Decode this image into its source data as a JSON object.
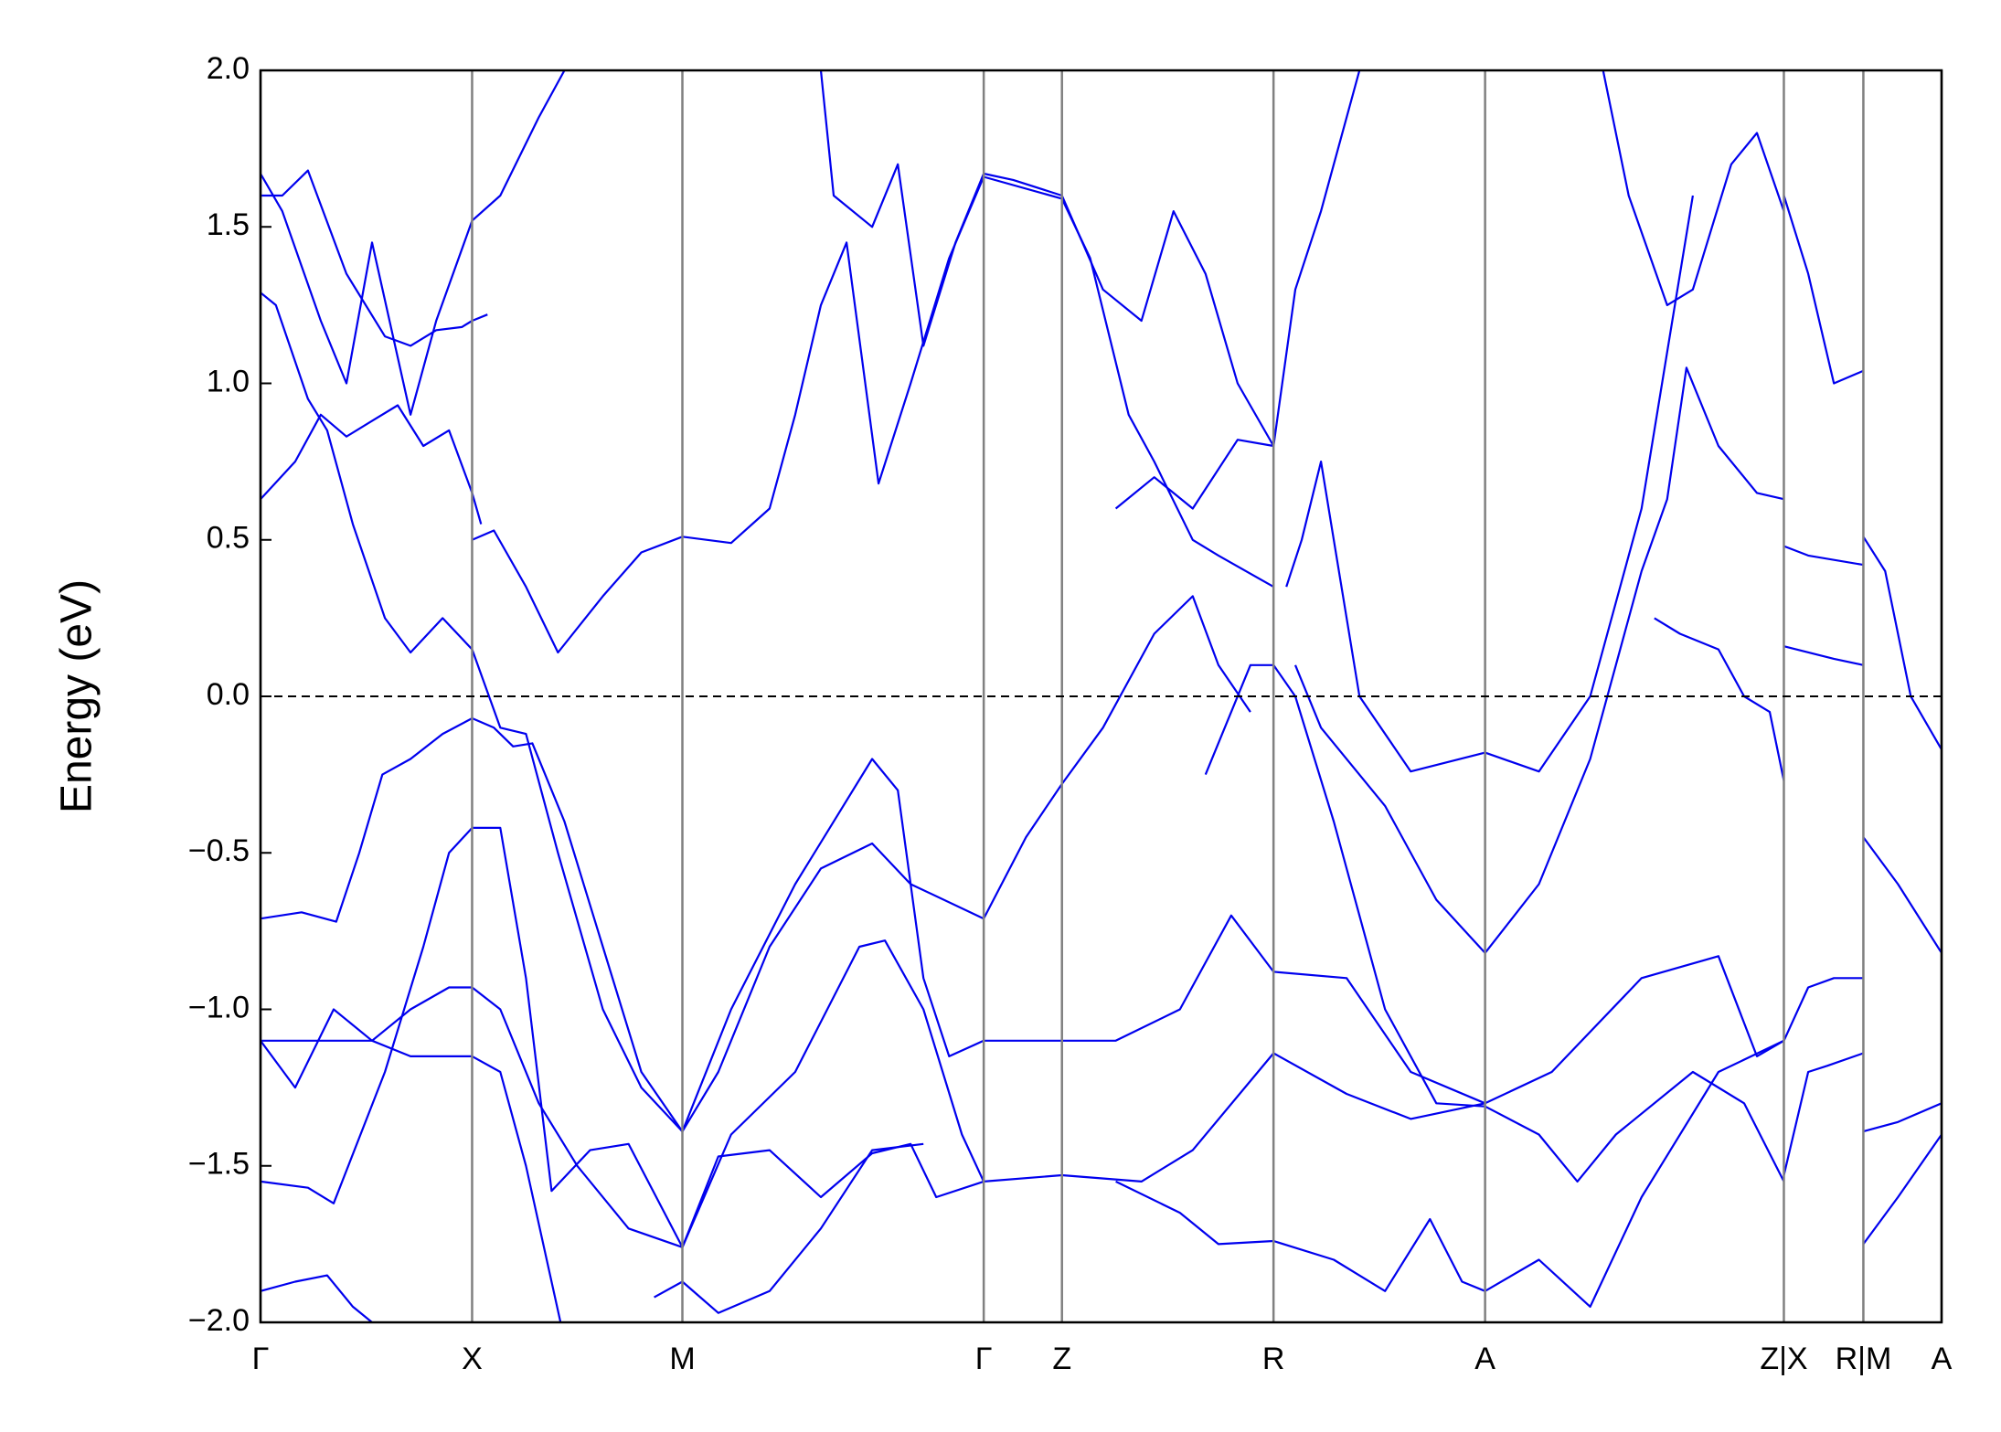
{
  "chart_data": {
    "type": "line",
    "ylabel": "Energy (eV)",
    "xlim": [
      0,
      1311
    ],
    "ylim": [
      -2.0,
      2.0
    ],
    "xticks": [
      {
        "value": 0,
        "label": "Γ"
      },
      {
        "value": 165,
        "label": "X"
      },
      {
        "value": 329,
        "label": "M"
      },
      {
        "value": 564,
        "label": "Γ"
      },
      {
        "value": 625,
        "label": "Z"
      },
      {
        "value": 790,
        "label": "R"
      },
      {
        "value": 955,
        "label": "A"
      },
      {
        "value": 1188,
        "label": "Z|X"
      },
      {
        "value": 1250,
        "label": "R|M"
      },
      {
        "value": 1311,
        "label": "A"
      }
    ],
    "yticks": [
      {
        "value": -2.0,
        "label": "−2.0"
      },
      {
        "value": -1.5,
        "label": "−1.5"
      },
      {
        "value": -1.0,
        "label": "−1.0"
      },
      {
        "value": -0.5,
        "label": "−0.5"
      },
      {
        "value": 0.0,
        "label": "0.0"
      },
      {
        "value": 0.5,
        "label": "0.5"
      },
      {
        "value": 1.0,
        "label": "1.0"
      },
      {
        "value": 1.5,
        "label": "1.5"
      },
      {
        "value": 2.0,
        "label": "2.0"
      }
    ],
    "hlines": [
      0
    ],
    "grid_color": "#808080",
    "series": [
      {
        "color": "#0000ee",
        "x": [
          165,
          182,
          207,
          232,
          267,
          297,
          329,
          367,
          397,
          417,
          437,
          457,
          482,
          507,
          537,
          564,
          625,
          647,
          677,
          697,
          727,
          747,
          790
        ],
        "values": [
          0.5,
          0.53,
          0.35,
          0.14,
          0.32,
          0.46,
          0.51,
          0.49,
          0.6,
          0.9,
          1.25,
          1.45,
          0.68,
          1.0,
          1.4,
          1.66,
          1.59,
          1.4,
          0.9,
          0.75,
          0.5,
          0.45,
          0.35
        ]
      },
      {
        "color": "#0000ee",
        "x": [
          0,
          27,
          47,
          67,
          87,
          107,
          127,
          147,
          165,
          172
        ],
        "values": [
          0.63,
          0.75,
          0.9,
          0.83,
          0.88,
          0.93,
          0.8,
          0.85,
          0.65,
          0.55
        ]
      },
      {
        "color": "#0000ee",
        "x": [
          0,
          17,
          47,
          67,
          87,
          117,
          137,
          165,
          187,
          217,
          237
        ],
        "values": [
          1.67,
          1.55,
          1.2,
          1.0,
          1.45,
          0.9,
          1.2,
          1.52,
          1.6,
          1.85,
          2.0
        ]
      },
      {
        "color": "#0000ee",
        "x": [
          0,
          12,
          37,
          52,
          72,
          97,
          117,
          142,
          165,
          187,
          207,
          232,
          267,
          297,
          329,
          357,
          397,
          437,
          477,
          507,
          564,
          597,
          625,
          657,
          697,
          727,
          747,
          772
        ],
        "values": [
          1.29,
          1.25,
          0.95,
          0.85,
          0.55,
          0.25,
          0.14,
          0.25,
          0.15,
          -0.1,
          -0.12,
          -0.5,
          -1.0,
          -1.25,
          -1.39,
          -1.2,
          -0.8,
          -0.55,
          -0.47,
          -0.6,
          -0.71,
          -0.45,
          -0.28,
          -0.1,
          0.2,
          0.32,
          0.1,
          -0.05
        ]
      },
      {
        "color": "#0000ee",
        "x": [
          0,
          32,
          59,
          77,
          95,
          117,
          142,
          165,
          182,
          197,
          212,
          237,
          267,
          297,
          329,
          367,
          417,
          477,
          497,
          517,
          537,
          564,
          625,
          667,
          717,
          757,
          790,
          847,
          897,
          955,
          1007,
          1077,
          1137,
          1167,
          1188
        ],
        "values": [
          -0.71,
          -0.69,
          -0.72,
          -0.5,
          -0.25,
          -0.2,
          -0.12,
          -0.07,
          -0.1,
          -0.16,
          -0.15,
          -0.4,
          -0.8,
          -1.2,
          -1.39,
          -1.0,
          -0.6,
          -0.2,
          -0.3,
          -0.9,
          -1.15,
          -1.1,
          -1.1,
          -1.1,
          -1.0,
          -0.7,
          -0.88,
          -0.9,
          -1.2,
          -1.3,
          -1.2,
          -0.9,
          -0.83,
          -1.15,
          -1.1
        ]
      },
      {
        "color": "#0000ee",
        "x": [
          0,
          47,
          87,
          117,
          147,
          165,
          187,
          217,
          247,
          287,
          329,
          367,
          417,
          467,
          487,
          517,
          547,
          564,
          625,
          687,
          727,
          790,
          847,
          897,
          955
        ],
        "values": [
          -1.1,
          -1.1,
          -1.1,
          -1.0,
          -0.93,
          -0.93,
          -1.0,
          -1.3,
          -1.5,
          -1.7,
          -1.76,
          -1.4,
          -1.2,
          -0.8,
          -0.78,
          -1.0,
          -1.4,
          -1.55,
          -1.53,
          -1.55,
          -1.45,
          -1.14,
          -1.27,
          -1.35,
          -1.3
        ]
      },
      {
        "color": "#0000ee",
        "x": [
          0,
          37,
          57,
          97,
          127,
          147,
          165,
          187,
          207,
          227,
          257,
          287,
          329,
          357,
          397,
          437,
          477,
          507,
          527,
          564
        ],
        "values": [
          -1.55,
          -1.57,
          -1.62,
          -1.2,
          -0.8,
          -0.5,
          -0.42,
          -0.42,
          -0.9,
          -1.58,
          -1.45,
          -1.43,
          -1.76,
          -1.47,
          -1.45,
          -1.6,
          -1.46,
          -1.43,
          -1.6,
          -1.55
        ]
      },
      {
        "color": "#0000ee",
        "x": [
          0,
          27,
          52,
          72,
          87
        ],
        "values": [
          -1.9,
          -1.87,
          -1.85,
          -1.95,
          -2.0
        ]
      },
      {
        "color": "#0000ee",
        "x": [
          0,
          27,
          57,
          87,
          117,
          165,
          187,
          207,
          234
        ],
        "values": [
          -1.1,
          -1.25,
          -1.0,
          -1.1,
          -1.15,
          -1.15,
          -1.2,
          -1.5,
          -2.0
        ]
      },
      {
        "color": "#0000ee",
        "x": [
          807,
          827,
          877,
          917,
          955,
          997,
          1037,
          1057,
          1077,
          1097,
          1112,
          1137,
          1167,
          1188
        ],
        "values": [
          0.1,
          -0.1,
          -0.35,
          -0.65,
          -0.82,
          -0.6,
          -0.2,
          0.1,
          0.4,
          0.63,
          1.05,
          0.8,
          0.65,
          0.63
        ]
      },
      {
        "color": "#0000ee",
        "x": [
          800,
          812,
          827,
          837,
          857,
          897,
          955,
          997,
          1037,
          1077,
          1097,
          1117
        ],
        "values": [
          0.35,
          0.5,
          0.75,
          0.5,
          0.0,
          -0.24,
          -0.18,
          -0.24,
          0.0,
          0.6,
          1.1,
          1.6
        ]
      },
      {
        "color": "#0000ee",
        "x": [
          1188,
          1207,
          1227,
          1250
        ],
        "values": [
          1.6,
          1.35,
          1.0,
          1.04
        ]
      },
      {
        "color": "#0000ee",
        "x": [
          1188,
          1207,
          1250
        ],
        "values": [
          0.48,
          0.45,
          0.42
        ]
      },
      {
        "color": "#0000ee",
        "x": [
          1188,
          1227,
          1250
        ],
        "values": [
          0.16,
          0.12,
          0.1
        ]
      },
      {
        "color": "#0000ee",
        "x": [
          1188,
          1207,
          1227,
          1250
        ],
        "values": [
          -1.1,
          -0.93,
          -0.9,
          -0.9
        ]
      },
      {
        "color": "#0000ee",
        "x": [
          1188,
          1207,
          1222,
          1250
        ],
        "values": [
          -1.53,
          -1.2,
          -1.18,
          -1.14
        ]
      },
      {
        "color": "#0000ee",
        "x": [
          1250,
          1267,
          1287,
          1311
        ],
        "values": [
          0.51,
          0.4,
          0.0,
          -0.17
        ]
      },
      {
        "color": "#0000ee",
        "x": [
          1250,
          1277,
          1311
        ],
        "values": [
          -0.45,
          -0.6,
          -0.82
        ]
      },
      {
        "color": "#0000ee",
        "x": [
          1250,
          1277,
          1311
        ],
        "values": [
          -1.39,
          -1.36,
          -1.3
        ]
      },
      {
        "color": "#0000ee",
        "x": [
          1250,
          1277,
          1311
        ],
        "values": [
          -1.75,
          -1.6,
          -1.4
        ]
      },
      {
        "color": "#0000ee",
        "x": [
          307,
          329,
          357,
          397,
          437,
          477,
          517
        ],
        "values": [
          -1.92,
          -1.87,
          -1.97,
          -1.9,
          -1.7,
          -1.45,
          -1.43
        ]
      },
      {
        "color": "#0000ee",
        "x": [
          667,
          717,
          747,
          790,
          837,
          877,
          912,
          937,
          955,
          997,
          1037,
          1077,
          1137,
          1188
        ],
        "values": [
          -1.55,
          -1.65,
          -1.75,
          -1.74,
          -1.8,
          -1.9,
          -1.67,
          -1.87,
          -1.9,
          -1.8,
          -1.95,
          -1.6,
          -1.2,
          -1.1
        ]
      },
      {
        "color": "#0000ee",
        "x": [
          437,
          447,
          477,
          497,
          517,
          542,
          564,
          587,
          625,
          657,
          687,
          712,
          737,
          762,
          790
        ],
        "values": [
          2.0,
          1.6,
          1.5,
          1.7,
          1.12,
          1.45,
          1.67,
          1.65,
          1.6,
          1.3,
          1.2,
          1.55,
          1.35,
          1.0,
          0.8
        ]
      },
      {
        "color": "#0000ee",
        "x": [
          667,
          697,
          727,
          762,
          790,
          807,
          827,
          857
        ],
        "values": [
          0.6,
          0.7,
          0.6,
          0.82,
          0.8,
          1.3,
          1.55,
          2.0
        ]
      },
      {
        "color": "#0000ee",
        "x": [
          737,
          772,
          790,
          807,
          837,
          877,
          917,
          955,
          997,
          1027,
          1057,
          1117,
          1157,
          1188
        ],
        "values": [
          -0.25,
          0.1,
          0.1,
          0.0,
          -0.4,
          -1.0,
          -1.3,
          -1.31,
          -1.4,
          -1.55,
          -1.4,
          -1.2,
          -1.3,
          -1.55
        ]
      },
      {
        "color": "#0000ee",
        "x": [
          1047,
          1067,
          1097,
          1117,
          1147,
          1167,
          1188
        ],
        "values": [
          2.0,
          1.6,
          1.25,
          1.3,
          1.7,
          1.8,
          1.55
        ]
      },
      {
        "color": "#0000ee",
        "x": [
          1087,
          1107,
          1137,
          1157,
          1177,
          1188
        ],
        "values": [
          0.25,
          0.2,
          0.15,
          0.0,
          -0.05,
          -0.27
        ]
      },
      {
        "color": "#0000ee",
        "x": [
          0,
          17,
          37,
          67,
          97,
          117,
          137,
          157,
          165,
          177
        ],
        "values": [
          1.6,
          1.6,
          1.68,
          1.35,
          1.15,
          1.12,
          1.17,
          1.18,
          1.2,
          1.22
        ]
      }
    ]
  }
}
